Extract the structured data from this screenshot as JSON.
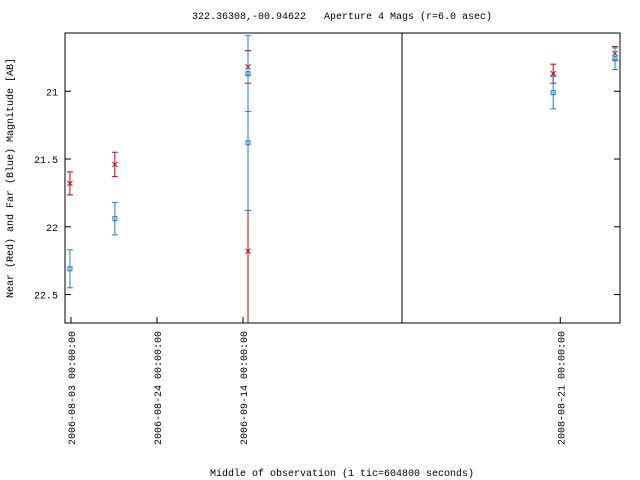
{
  "chart_data": {
    "type": "scatter",
    "title": "322.36308,-00.94622   Aperture 4 Mags (r=6.0 asec)",
    "x_label": "Middle of observation (1 tic=604800 seconds)",
    "y_label": "Near (Red) and Far (Blue) Magnitude [AB]",
    "x": [
      "2006-08-02 18:00:00",
      "2006-08-13 17:00:00",
      "2006-09-15 05:00:00",
      "2006-09-15 05:00:00",
      "2008-08-19 07:00:00",
      "2008-09-03 05:00:00"
    ],
    "series": [
      {
        "name": "Near",
        "color": "#cc0000",
        "marker": "x",
        "values": [
          21.68,
          21.54,
          20.82,
          22.18,
          20.87,
          20.72
        ],
        "errors": [
          0.085,
          0.09,
          0.12,
          1.3,
          0.07,
          0.05
        ]
      },
      {
        "name": "Far",
        "color": "#1e7fd0",
        "marker": "square",
        "values": [
          22.31,
          21.94,
          20.87,
          21.38,
          21.01,
          20.76
        ],
        "errors": [
          0.14,
          0.12,
          0.28,
          0.5,
          0.12,
          0.08
        ]
      }
    ],
    "xlim": [
      [
        "2006-08-01 13:00:00",
        "2006-10-22 19:00:00"
      ],
      [
        "2008-07-13 19:00:00",
        "2008-09-04 10:00:00"
      ]
    ],
    "xticks": [
      "2006-08-03 00:00:00",
      "2006-08-24 00:00:00",
      "2006-09-14 00:00:00",
      "2008-08-21 00:00:00"
    ],
    "ylim": [
      22.71,
      20.57
    ],
    "yticks": [
      21,
      21.5,
      22,
      22.5
    ]
  }
}
